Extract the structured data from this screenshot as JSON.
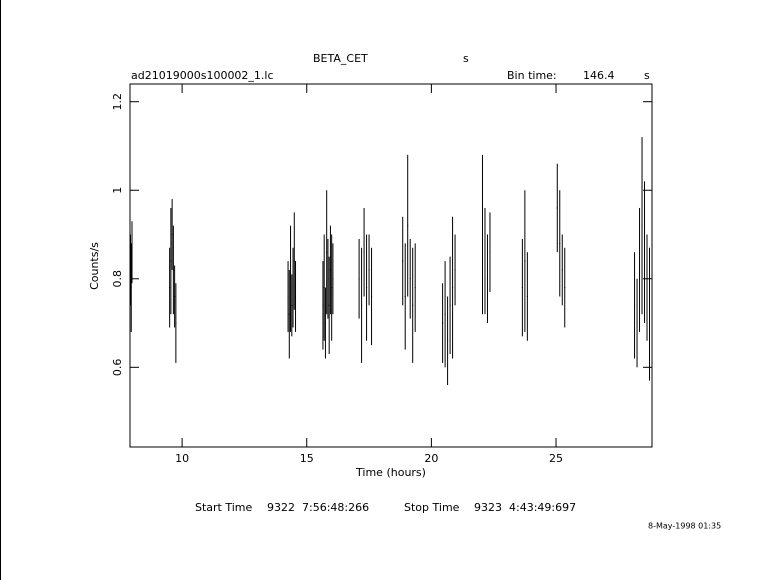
{
  "chart_data": {
    "type": "errorbar",
    "title": "BETA_CET",
    "title_suffix": "s",
    "subtitle": "ad21019000s100002_1.lc",
    "bin_time_label": "Bin time:",
    "bin_time": 146.4,
    "bin_time_unit": "s",
    "xlabel": "Time (hours)",
    "ylabel": "Counts/s",
    "start_time_label": "Start Time",
    "start_time": "9322  7:56:48:266",
    "stop_time_label": "Stop Time",
    "stop_time": "9323  4:43:49:697",
    "date": "8-May-1998 01:35",
    "color": "#000000",
    "xlim": [
      7.91,
      28.85
    ],
    "ylim": [
      0.42,
      1.24
    ],
    "xticks": [
      10,
      15,
      20,
      25
    ],
    "yticks": [
      0.6,
      0.8,
      1,
      1.2
    ],
    "x": [
      7.93,
      7.96,
      7.99,
      9.5,
      9.55,
      9.6,
      9.65,
      9.7,
      9.75,
      14.25,
      14.3,
      14.35,
      14.4,
      14.45,
      14.5,
      14.55,
      15.65,
      15.7,
      15.75,
      15.8,
      15.85,
      15.9,
      15.95,
      16.0,
      16.05,
      17.1,
      17.2,
      17.3,
      17.4,
      17.5,
      17.6,
      18.85,
      18.95,
      19.05,
      19.15,
      19.25,
      19.35,
      20.45,
      20.55,
      20.65,
      20.75,
      20.85,
      20.95,
      22.05,
      22.15,
      22.25,
      22.35,
      23.65,
      23.75,
      23.85,
      25.05,
      25.15,
      25.25,
      25.35,
      28.15,
      28.25,
      28.35,
      28.45,
      28.55,
      28.65,
      28.75
    ],
    "values": [
      0.82,
      0.78,
      0.86,
      0.78,
      0.84,
      0.9,
      0.82,
      0.76,
      0.7,
      0.76,
      0.72,
      0.8,
      0.74,
      0.78,
      0.84,
      0.76,
      0.74,
      0.78,
      0.7,
      0.86,
      0.8,
      0.74,
      0.82,
      0.78,
      0.8,
      0.8,
      0.74,
      0.86,
      0.78,
      0.82,
      0.76,
      0.84,
      0.76,
      0.92,
      0.8,
      0.74,
      0.78,
      0.7,
      0.72,
      0.66,
      0.74,
      0.78,
      0.82,
      0.9,
      0.84,
      0.8,
      0.86,
      0.78,
      0.84,
      0.76,
      0.96,
      0.88,
      0.82,
      0.78,
      0.74,
      0.7,
      0.82,
      0.92,
      0.86,
      0.78,
      0.72
    ],
    "errors": [
      0.08,
      0.1,
      0.07,
      0.09,
      0.12,
      0.08,
      0.1,
      0.07,
      0.09,
      0.08,
      0.1,
      0.12,
      0.07,
      0.09,
      0.11,
      0.08,
      0.1,
      0.12,
      0.08,
      0.14,
      0.09,
      0.11,
      0.1,
      0.12,
      0.08,
      0.09,
      0.13,
      0.1,
      0.12,
      0.08,
      0.11,
      0.1,
      0.12,
      0.16,
      0.09,
      0.13,
      0.1,
      0.09,
      0.12,
      0.1,
      0.11,
      0.16,
      0.08,
      0.18,
      0.12,
      0.1,
      0.09,
      0.11,
      0.16,
      0.1,
      0.1,
      0.12,
      0.08,
      0.09,
      0.12,
      0.1,
      0.14,
      0.2,
      0.16,
      0.12,
      0.15
    ]
  }
}
